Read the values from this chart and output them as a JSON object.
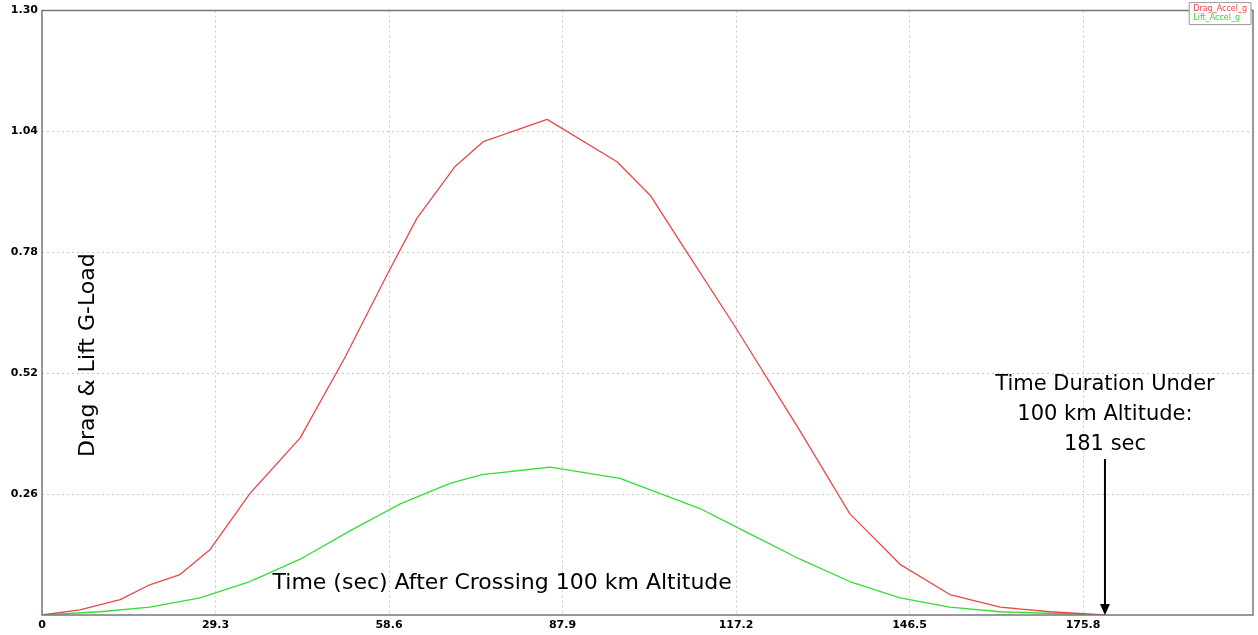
{
  "chart_data": {
    "type": "line",
    "xlabel": "Time (sec) After Crossing 100 km Altitude",
    "ylabel": "Drag & Lift G-Load",
    "xlim": [
      0,
      204.5
    ],
    "xticks": [
      0,
      29.3,
      58.6,
      87.9,
      117.2,
      146.5,
      175.8
    ],
    "ylim": [
      0,
      1.3
    ],
    "yticks": [
      0.26,
      0.52,
      0.78,
      1.04,
      {
        "value": 1.3,
        "label": "1.30"
      }
    ],
    "grid": true,
    "legend": "top right",
    "marker": "none",
    "line_style": "solid",
    "annotations": [
      {
        "text": "Time Duration Under\n100 km Altitude:\n181 sec",
        "x": 179.5,
        "y": 0
      }
    ],
    "series": [
      {
        "name": "Drag_Accel_g",
        "color": "#e8474a",
        "x": [
          0,
          6.4,
          13.2,
          18.2,
          23.3,
          28.4,
          35.1,
          43.6,
          51.2,
          58.4,
          63.3,
          69.7,
          74.5,
          85.3,
          97.1,
          102.7,
          108.2,
          116.7,
          128.0,
          136.4,
          144.9,
          153.3,
          161.8,
          170.2,
          179.5
        ],
        "values": [
          0,
          0.011,
          0.033,
          0.065,
          0.087,
          0.141,
          0.261,
          0.381,
          0.555,
          0.735,
          0.853,
          0.964,
          1.018,
          1.066,
          0.975,
          0.903,
          0.794,
          0.627,
          0.396,
          0.218,
          0.109,
          0.044,
          0.017,
          0.007,
          0
        ]
      },
      {
        "name": "Lift_Accel_g",
        "color": "#33dd33",
        "x": [
          0,
          9.8,
          18.2,
          26.7,
          35.1,
          43.6,
          52.0,
          60.5,
          68.9,
          74.3,
          85.8,
          97.6,
          111.1,
          119.6,
          128.0,
          136.4,
          144.9,
          153.3,
          161.8,
          178.7
        ],
        "values": [
          0,
          0.007,
          0.017,
          0.037,
          0.072,
          0.12,
          0.181,
          0.239,
          0.283,
          0.302,
          0.318,
          0.294,
          0.229,
          0.174,
          0.12,
          0.072,
          0.037,
          0.017,
          0.007,
          0
        ]
      }
    ]
  }
}
